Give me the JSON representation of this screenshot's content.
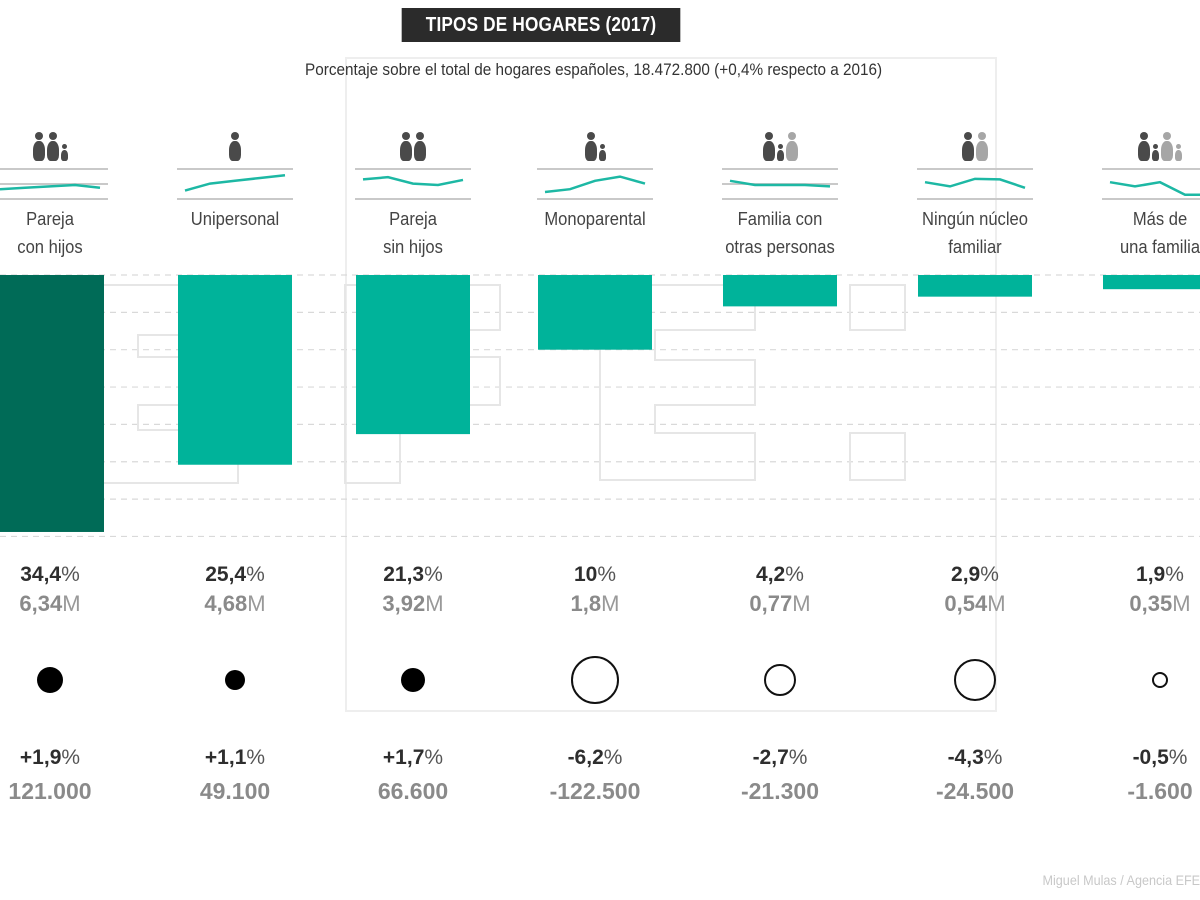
{
  "title": "TIPOS DE HOGARES (2017)",
  "subtitle": "Porcentaje sobre el total de hogares españoles, 18.472.800 (+0,4% respecto a 2016)",
  "credit": "Miguel Mulas / Agencia EFE",
  "colors": {
    "highlight_bar": "#006b57",
    "bar": "#00b39a",
    "sparkline": "#1db8a4",
    "gridline": "#d9d9d9",
    "icon_dark": "#4a4a4a",
    "icon_light": "#a6a6a6",
    "title_bg": "#2b2b2b"
  },
  "chart_data": {
    "type": "bar",
    "title": "TIPOS DE HOGARES (2017)",
    "subtitle": "Porcentaje sobre el total de hogares españoles, 18.472.800 (+0,4% respecto a 2016)",
    "orientation": "hanging-vertical",
    "unit": "%",
    "grid": true,
    "categories": [
      "Pareja con hijos",
      "Unipersonal",
      "Pareja sin hijos",
      "Monoparental",
      "Familia con otras personas",
      "Ningún núcleo familiar",
      "Más de una familia"
    ],
    "values": [
      34.4,
      25.4,
      21.3,
      10,
      4.2,
      2.9,
      1.9
    ],
    "households_millions": [
      6.34,
      4.68,
      3.92,
      1.8,
      0.77,
      0.54,
      0.35
    ],
    "change_pct_vs_2016": [
      1.9,
      1.1,
      1.7,
      -6.2,
      -2.7,
      -4.3,
      -0.5
    ],
    "change_abs_vs_2016": [
      121000,
      49100,
      66600,
      -122500,
      -21300,
      -24500,
      -1600
    ],
    "ylim": [
      0,
      35
    ],
    "grid_step": 5,
    "sparkline_trends": [
      [
        0.35,
        0.4,
        0.45,
        0.5,
        0.4
      ],
      [
        0.3,
        0.55,
        0.65,
        0.75,
        0.85
      ],
      [
        0.7,
        0.78,
        0.55,
        0.5,
        0.68
      ],
      [
        0.25,
        0.35,
        0.65,
        0.8,
        0.55
      ],
      [
        0.65,
        0.5,
        0.5,
        0.5,
        0.45
      ],
      [
        0.6,
        0.45,
        0.72,
        0.7,
        0.4
      ],
      [
        0.6,
        0.45,
        0.6,
        0.15,
        0.15
      ]
    ]
  },
  "columns": [
    {
      "label_line1": "Pareja",
      "label_line2": "con hijos",
      "pct": "34,4",
      "pct_unit": "%",
      "abs": "6,34",
      "abs_unit": "M",
      "chg_pct": "+1,9",
      "chg_unit": "%",
      "chg_abs": "121.000",
      "icon": "couple-with-child-icon",
      "dot": "filled-large"
    },
    {
      "label_line1": "Unipersonal",
      "label_line2": "",
      "pct": "25,4",
      "pct_unit": "%",
      "abs": "4,68",
      "abs_unit": "M",
      "chg_pct": "+1,1",
      "chg_unit": "%",
      "chg_abs": "49.100",
      "icon": "single-person-icon",
      "dot": "filled-small"
    },
    {
      "label_line1": "Pareja",
      "label_line2": "sin hijos",
      "pct": "21,3",
      "pct_unit": "%",
      "abs": "3,92",
      "abs_unit": "M",
      "chg_pct": "+1,7",
      "chg_unit": "%",
      "chg_abs": "66.600",
      "icon": "couple-icon",
      "dot": "filled-medium"
    },
    {
      "label_line1": "Monoparental",
      "label_line2": "",
      "pct": "10",
      "pct_unit": "%",
      "abs": "1,8",
      "abs_unit": "M",
      "chg_pct": "-6,2",
      "chg_unit": "%",
      "chg_abs": "-122.500",
      "icon": "single-parent-icon",
      "dot": "hollow-xlarge"
    },
    {
      "label_line1": "Familia con",
      "label_line2": "otras personas",
      "pct": "4,2",
      "pct_unit": "%",
      "abs": "0,77",
      "abs_unit": "M",
      "chg_pct": "-2,7",
      "chg_unit": "%",
      "chg_abs": "-21.300",
      "icon": "family-with-others-icon",
      "dot": "hollow-medium"
    },
    {
      "label_line1": "Ningún núcleo",
      "label_line2": "familiar",
      "pct": "2,9",
      "pct_unit": "%",
      "abs": "0,54",
      "abs_unit": "M",
      "chg_pct": "-4,3",
      "chg_unit": "%",
      "chg_abs": "-24.500",
      "icon": "no-family-nucleus-icon",
      "dot": "hollow-large"
    },
    {
      "label_line1": "Más de",
      "label_line2": "una familia",
      "pct": "1,9",
      "pct_unit": "%",
      "abs": "0,35",
      "abs_unit": "M",
      "chg_pct": "-0,5",
      "chg_unit": "%",
      "chg_abs": "-1.600",
      "icon": "multiple-families-icon",
      "dot": "hollow-small"
    }
  ]
}
